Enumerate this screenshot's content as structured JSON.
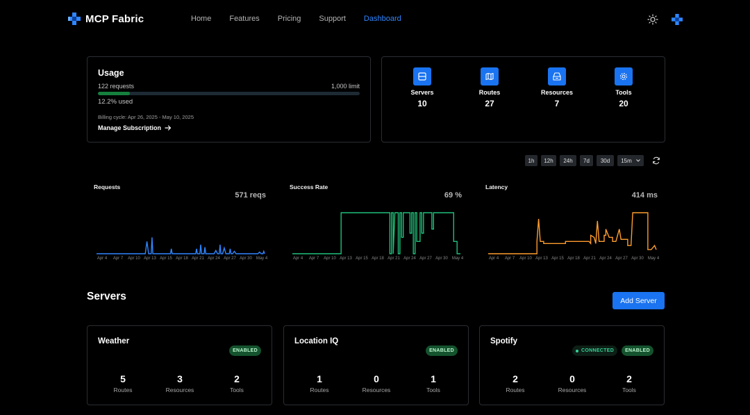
{
  "brand": {
    "name": "MCP Fabric"
  },
  "nav": [
    {
      "label": "Home",
      "active": false
    },
    {
      "label": "Features",
      "active": false
    },
    {
      "label": "Pricing",
      "active": false
    },
    {
      "label": "Support",
      "active": false
    },
    {
      "label": "Dashboard",
      "active": true
    }
  ],
  "usage": {
    "title": "Usage",
    "requests": "122 requests",
    "limit": "1,000 limit",
    "progress_fraction": 0.122,
    "used": "12.2% used",
    "billing": "Billing cycle: Apr 26, 2025 - May 10, 2025",
    "manage": "Manage Subscription"
  },
  "stats": [
    {
      "label": "Servers",
      "value": "10",
      "icon": "server-icon"
    },
    {
      "label": "Routes",
      "value": "27",
      "icon": "map-icon"
    },
    {
      "label": "Resources",
      "value": "7",
      "icon": "box-icon"
    },
    {
      "label": "Tools",
      "value": "20",
      "icon": "gear-icon"
    }
  ],
  "time_ranges": [
    "1h",
    "12h",
    "24h",
    "7d",
    "30d"
  ],
  "interval_select": "15m",
  "charts": [
    {
      "title": "Requests",
      "value": "571 reqs",
      "color": "#2f86ff"
    },
    {
      "title": "Success Rate",
      "value": "69 %",
      "color": "#1fc07a"
    },
    {
      "title": "Latency",
      "value": "414 ms",
      "color": "#ff9d2e"
    }
  ],
  "chart_data": [
    {
      "type": "line",
      "title": "Requests",
      "x_ticks": [
        "Apr 4",
        "Apr 7",
        "Apr 10",
        "Apr 13",
        "Apr 15",
        "Apr 18",
        "Apr 21",
        "Apr 24",
        "Apr 27",
        "Apr 30",
        "May 4"
      ],
      "series": [
        {
          "values": [
            [
              0,
              0
            ],
            [
              29,
              0
            ],
            [
              30,
              30
            ],
            [
              31,
              0
            ],
            [
              32.5,
              0
            ],
            [
              33,
              40
            ],
            [
              33.5,
              0
            ],
            [
              44,
              0
            ],
            [
              44.5,
              12
            ],
            [
              45,
              0
            ],
            [
              59,
              0
            ],
            [
              59.5,
              12
            ],
            [
              60,
              0
            ],
            [
              61.5,
              0
            ],
            [
              62,
              22
            ],
            [
              62.5,
              0
            ],
            [
              64,
              0
            ],
            [
              64.5,
              16
            ],
            [
              65,
              0
            ],
            [
              70,
              0
            ],
            [
              71,
              8
            ],
            [
              72,
              0
            ],
            [
              73,
              0
            ],
            [
              73.5,
              22
            ],
            [
              74,
              0
            ],
            [
              75,
              0
            ],
            [
              76,
              14
            ],
            [
              77,
              0
            ],
            [
              79,
              0
            ],
            [
              79.5,
              12
            ],
            [
              80,
              0
            ],
            [
              81,
              0
            ],
            [
              82,
              6
            ],
            [
              83,
              0
            ],
            [
              96,
              0
            ],
            [
              97,
              4
            ],
            [
              98,
              0
            ],
            [
              99,
              0
            ],
            [
              99.5,
              6
            ],
            [
              100,
              0
            ]
          ]
        }
      ]
    },
    {
      "type": "line",
      "title": "Success Rate",
      "x_ticks": [
        "Apr 4",
        "Apr 7",
        "Apr 10",
        "Apr 13",
        "Apr 15",
        "Apr 18",
        "Apr 21",
        "Apr 24",
        "Apr 27",
        "Apr 30",
        "May 4"
      ],
      "series": [
        {
          "values": [
            [
              0,
              0
            ],
            [
              29,
              0
            ],
            [
              29,
              100
            ],
            [
              58,
              100
            ],
            [
              58,
              0
            ],
            [
              59,
              0
            ],
            [
              59,
              100
            ],
            [
              60,
              100
            ],
            [
              60,
              0
            ],
            [
              61,
              100
            ],
            [
              63,
              100
            ],
            [
              63,
              0
            ],
            [
              64,
              0
            ],
            [
              64,
              100
            ],
            [
              65,
              100
            ],
            [
              65,
              40
            ],
            [
              66,
              40
            ],
            [
              66,
              100
            ],
            [
              70,
              100
            ],
            [
              70,
              50
            ],
            [
              71,
              50
            ],
            [
              71,
              100
            ],
            [
              72,
              100
            ],
            [
              72,
              0
            ],
            [
              73,
              0
            ],
            [
              73,
              100
            ],
            [
              74,
              100
            ],
            [
              74,
              30
            ],
            [
              76,
              30
            ],
            [
              76,
              100
            ],
            [
              77,
              100
            ],
            [
              77,
              50
            ],
            [
              78,
              50
            ],
            [
              78,
              100
            ],
            [
              83,
              100
            ],
            [
              83,
              60
            ],
            [
              84,
              60
            ],
            [
              84,
              100
            ],
            [
              96,
              100
            ],
            [
              96,
              30
            ],
            [
              98,
              30
            ],
            [
              98,
              0
            ],
            [
              100,
              0
            ]
          ]
        }
      ]
    },
    {
      "type": "line",
      "title": "Latency",
      "x_ticks": [
        "Apr 4",
        "Apr 7",
        "Apr 10",
        "Apr 13",
        "Apr 15",
        "Apr 18",
        "Apr 21",
        "Apr 24",
        "Apr 27",
        "Apr 30",
        "May 4"
      ],
      "series": [
        {
          "values": [
            [
              0,
              0
            ],
            [
              29,
              0
            ],
            [
              29,
              30
            ],
            [
              30,
              85
            ],
            [
              31,
              30
            ],
            [
              33,
              30
            ],
            [
              33,
              25
            ],
            [
              46,
              25
            ],
            [
              46,
              30
            ],
            [
              60,
              30
            ],
            [
              61,
              25
            ],
            [
              61,
              45
            ],
            [
              63,
              40
            ],
            [
              64,
              25
            ],
            [
              65,
              80
            ],
            [
              66,
              30
            ],
            [
              69,
              30
            ],
            [
              69,
              45
            ],
            [
              70,
              45
            ],
            [
              70,
              60
            ],
            [
              72,
              40
            ],
            [
              74,
              40
            ],
            [
              74,
              30
            ],
            [
              76,
              30
            ],
            [
              78,
              60
            ],
            [
              79,
              35
            ],
            [
              83,
              35
            ],
            [
              83,
              20
            ],
            [
              85,
              20
            ],
            [
              86,
              100
            ],
            [
              95,
              100
            ],
            [
              95,
              10
            ],
            [
              97,
              10
            ],
            [
              99,
              20
            ],
            [
              100,
              10
            ]
          ]
        }
      ]
    }
  ],
  "servers_section": {
    "title": "Servers",
    "add_label": "Add Server"
  },
  "servers": [
    {
      "name": "Weather",
      "badges": [
        "ENABLED"
      ],
      "routes": "5",
      "resources": "3",
      "tools": "2"
    },
    {
      "name": "Location IQ",
      "badges": [
        "ENABLED"
      ],
      "routes": "1",
      "resources": "0",
      "tools": "1"
    },
    {
      "name": "Spotify",
      "badges": [
        "CONNECTED",
        "ENABLED"
      ],
      "routes": "2",
      "resources": "0",
      "tools": "2"
    }
  ],
  "server_stat_labels": {
    "routes": "Routes",
    "resources": "Resources",
    "tools": "Tools"
  }
}
